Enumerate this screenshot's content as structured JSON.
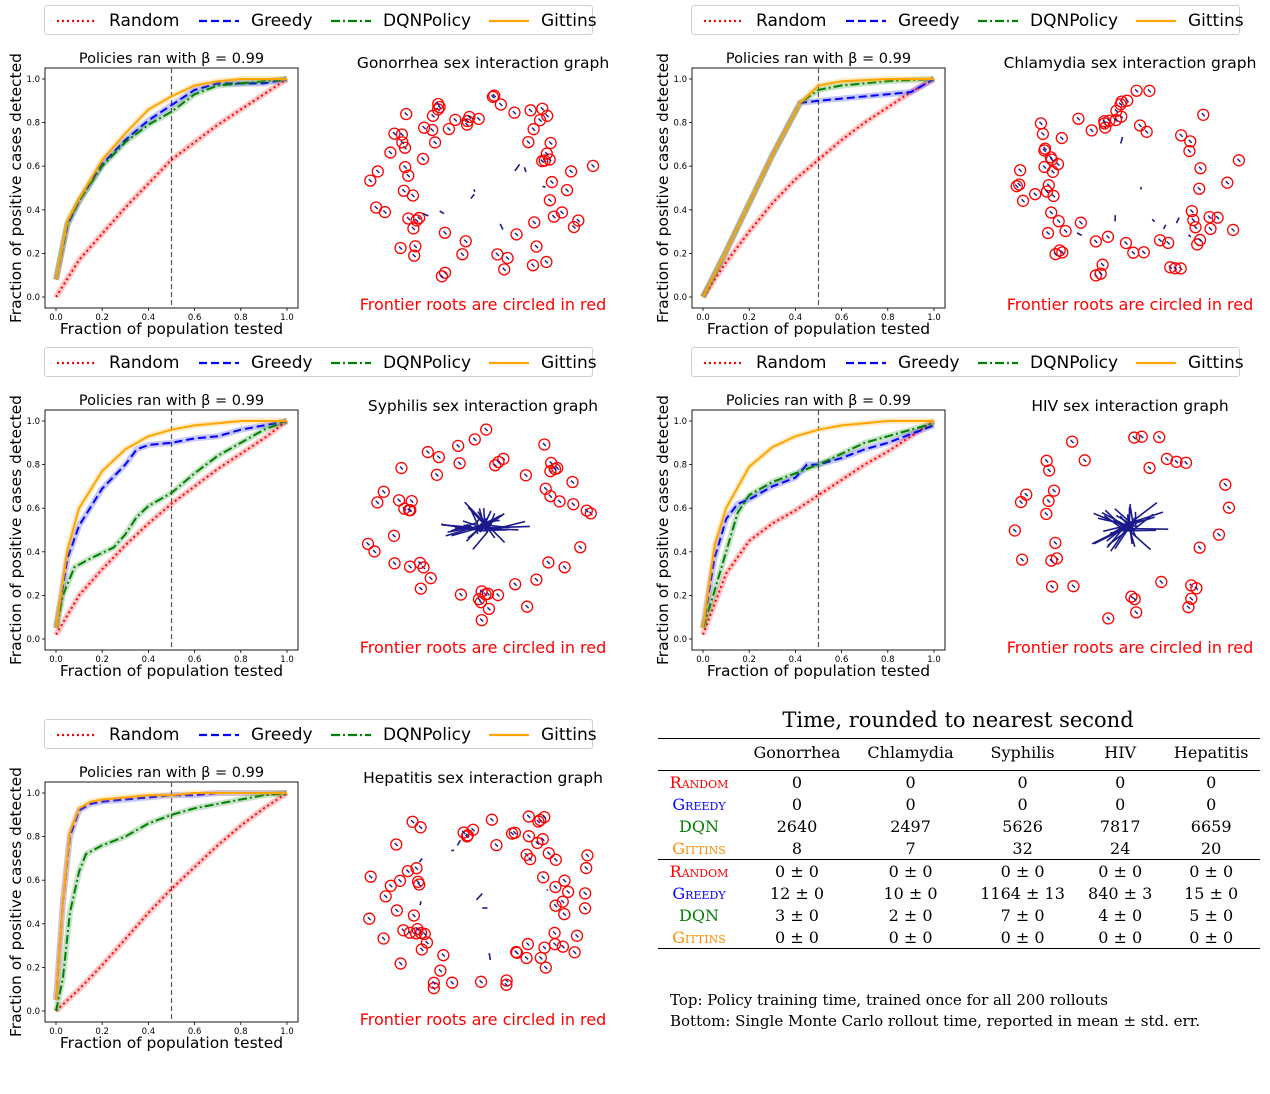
{
  "legend": {
    "entries": [
      {
        "name": "Random",
        "color": "#ff0000",
        "style": "dotted"
      },
      {
        "name": "Greedy",
        "color": "#0000ff",
        "style": "dashed"
      },
      {
        "name": "DQNPolicy",
        "color": "#008000",
        "style": "dashdot"
      },
      {
        "name": "Gittins",
        "color": "#ffa500",
        "style": "solid"
      }
    ]
  },
  "graph_caption": "Frontier roots are circled in red",
  "chart_data": [
    {
      "type": "line",
      "title": "Policies ran with β = 0.99",
      "graph_title": "Gonorrhea sex interaction graph",
      "xlabel": "Fraction of population tested",
      "ylabel": "Fraction of positive cases detected",
      "xlim": [
        0,
        1
      ],
      "ylim": [
        0,
        1
      ],
      "xticks": [
        "0.0",
        "0.2",
        "0.4",
        "0.6",
        "0.8",
        "1.0"
      ],
      "yticks": [
        "0.0",
        "0.2",
        "0.4",
        "0.6",
        "0.8",
        "1.0"
      ],
      "vline_x": 0.5,
      "series": [
        {
          "name": "Random",
          "x": [
            0,
            0.1,
            0.2,
            0.3,
            0.4,
            0.5,
            0.6,
            0.7,
            0.8,
            0.9,
            1.0
          ],
          "values": [
            0,
            0.17,
            0.29,
            0.41,
            0.52,
            0.63,
            0.71,
            0.79,
            0.86,
            0.93,
            1.0
          ]
        },
        {
          "name": "Greedy",
          "x": [
            0,
            0.05,
            0.1,
            0.2,
            0.3,
            0.4,
            0.5,
            0.6,
            0.7,
            0.8,
            0.9,
            1.0
          ],
          "values": [
            0.08,
            0.33,
            0.44,
            0.61,
            0.72,
            0.81,
            0.88,
            0.95,
            0.98,
            0.98,
            0.98,
            1.0
          ]
        },
        {
          "name": "DQNPolicy",
          "x": [
            0,
            0.05,
            0.1,
            0.2,
            0.3,
            0.4,
            0.5,
            0.6,
            0.7,
            0.8,
            0.9,
            1.0
          ],
          "values": [
            0.08,
            0.34,
            0.44,
            0.6,
            0.71,
            0.79,
            0.85,
            0.93,
            0.97,
            0.98,
            0.99,
            1.0
          ]
        },
        {
          "name": "Gittins",
          "x": [
            0,
            0.05,
            0.1,
            0.2,
            0.3,
            0.4,
            0.5,
            0.6,
            0.7,
            0.8,
            0.9,
            1.0
          ],
          "values": [
            0.08,
            0.35,
            0.45,
            0.63,
            0.75,
            0.86,
            0.92,
            0.97,
            0.99,
            1.0,
            1.0,
            1.0
          ]
        }
      ]
    },
    {
      "type": "line",
      "title": "Policies ran with β = 0.99",
      "graph_title": "Chlamydia sex interaction graph",
      "xlabel": "Fraction of population tested",
      "ylabel": "Fraction of positive cases detected",
      "xlim": [
        0,
        1
      ],
      "ylim": [
        0,
        1
      ],
      "xticks": [
        "0.0",
        "0.2",
        "0.4",
        "0.6",
        "0.8",
        "1.0"
      ],
      "yticks": [
        "0.0",
        "0.2",
        "0.4",
        "0.6",
        "0.8",
        "1.0"
      ],
      "vline_x": 0.5,
      "series": [
        {
          "name": "Random",
          "x": [
            0,
            0.1,
            0.2,
            0.3,
            0.4,
            0.5,
            0.6,
            0.7,
            0.8,
            0.9,
            1.0
          ],
          "values": [
            0,
            0.16,
            0.3,
            0.43,
            0.54,
            0.63,
            0.72,
            0.8,
            0.87,
            0.94,
            1.0
          ]
        },
        {
          "name": "Greedy",
          "x": [
            0,
            0.1,
            0.2,
            0.3,
            0.42,
            0.5,
            0.6,
            0.7,
            0.8,
            0.9,
            1.0
          ],
          "values": [
            0,
            0.21,
            0.43,
            0.65,
            0.89,
            0.9,
            0.91,
            0.92,
            0.93,
            0.94,
            1.0
          ]
        },
        {
          "name": "DQNPolicy",
          "x": [
            0,
            0.1,
            0.2,
            0.3,
            0.42,
            0.5,
            0.6,
            0.7,
            0.8,
            0.9,
            1.0
          ],
          "values": [
            0,
            0.21,
            0.43,
            0.65,
            0.89,
            0.95,
            0.97,
            0.98,
            0.99,
            0.995,
            1.0
          ]
        },
        {
          "name": "Gittins",
          "x": [
            0,
            0.1,
            0.2,
            0.3,
            0.42,
            0.5,
            0.6,
            0.7,
            0.8,
            0.9,
            1.0
          ],
          "values": [
            0,
            0.21,
            0.43,
            0.65,
            0.89,
            0.97,
            0.99,
            0.995,
            1.0,
            1.0,
            1.0
          ]
        }
      ]
    },
    {
      "type": "line",
      "title": "Policies ran with β = 0.99",
      "graph_title": "Syphilis sex interaction graph",
      "xlabel": "Fraction of population tested",
      "ylabel": "Fraction of positive cases detected",
      "xlim": [
        0,
        1
      ],
      "ylim": [
        0,
        1
      ],
      "xticks": [
        "0.0",
        "0.2",
        "0.4",
        "0.6",
        "0.8",
        "1.0"
      ],
      "yticks": [
        "0.0",
        "0.2",
        "0.4",
        "0.6",
        "0.8",
        "1.0"
      ],
      "vline_x": 0.5,
      "series": [
        {
          "name": "Random",
          "x": [
            0,
            0.1,
            0.2,
            0.3,
            0.4,
            0.5,
            0.6,
            0.7,
            0.8,
            0.9,
            1.0
          ],
          "values": [
            0.02,
            0.2,
            0.32,
            0.43,
            0.53,
            0.62,
            0.7,
            0.78,
            0.85,
            0.92,
            1.0
          ]
        },
        {
          "name": "Greedy",
          "x": [
            0,
            0.05,
            0.1,
            0.2,
            0.3,
            0.35,
            0.4,
            0.5,
            0.6,
            0.7,
            0.8,
            0.9,
            1.0
          ],
          "values": [
            0.05,
            0.37,
            0.52,
            0.69,
            0.8,
            0.87,
            0.89,
            0.9,
            0.92,
            0.93,
            0.96,
            0.98,
            1.0
          ]
        },
        {
          "name": "DQNPolicy",
          "x": [
            0,
            0.03,
            0.08,
            0.15,
            0.25,
            0.3,
            0.35,
            0.4,
            0.5,
            0.6,
            0.7,
            0.8,
            0.9,
            1.0
          ],
          "values": [
            0.05,
            0.2,
            0.33,
            0.37,
            0.42,
            0.48,
            0.56,
            0.61,
            0.67,
            0.76,
            0.84,
            0.9,
            0.96,
            1.0
          ]
        },
        {
          "name": "Gittins",
          "x": [
            0,
            0.05,
            0.1,
            0.2,
            0.3,
            0.4,
            0.5,
            0.6,
            0.7,
            0.8,
            0.9,
            1.0
          ],
          "values": [
            0.05,
            0.41,
            0.6,
            0.77,
            0.87,
            0.93,
            0.96,
            0.98,
            0.99,
            1.0,
            1.0,
            1.0
          ]
        }
      ]
    },
    {
      "type": "line",
      "title": "Policies ran with β = 0.99",
      "graph_title": "HIV sex interaction graph",
      "xlabel": "Fraction of population tested",
      "ylabel": "Fraction of positive cases detected",
      "xlim": [
        0,
        1
      ],
      "ylim": [
        0,
        1
      ],
      "xticks": [
        "0.0",
        "0.2",
        "0.4",
        "0.6",
        "0.8",
        "1.0"
      ],
      "yticks": [
        "0.0",
        "0.2",
        "0.4",
        "0.6",
        "0.8",
        "1.0"
      ],
      "vline_x": 0.5,
      "series": [
        {
          "name": "Random",
          "x": [
            0,
            0.05,
            0.1,
            0.2,
            0.3,
            0.4,
            0.5,
            0.6,
            0.7,
            0.8,
            0.9,
            1.0
          ],
          "values": [
            0.02,
            0.16,
            0.3,
            0.45,
            0.53,
            0.59,
            0.66,
            0.73,
            0.8,
            0.86,
            0.93,
            1.0
          ]
        },
        {
          "name": "Greedy",
          "x": [
            0,
            0.05,
            0.1,
            0.15,
            0.2,
            0.3,
            0.4,
            0.45,
            0.5,
            0.6,
            0.7,
            0.8,
            0.9,
            1.0
          ],
          "values": [
            0.05,
            0.37,
            0.55,
            0.62,
            0.64,
            0.7,
            0.74,
            0.8,
            0.8,
            0.83,
            0.87,
            0.9,
            0.94,
            0.98
          ]
        },
        {
          "name": "DQNPolicy",
          "x": [
            0,
            0.05,
            0.1,
            0.15,
            0.2,
            0.3,
            0.4,
            0.5,
            0.6,
            0.7,
            0.8,
            0.9,
            1.0
          ],
          "values": [
            0.05,
            0.22,
            0.4,
            0.58,
            0.66,
            0.72,
            0.76,
            0.8,
            0.85,
            0.9,
            0.93,
            0.96,
            0.99
          ]
        },
        {
          "name": "Gittins",
          "x": [
            0,
            0.05,
            0.1,
            0.2,
            0.3,
            0.4,
            0.5,
            0.6,
            0.7,
            0.8,
            0.9,
            1.0
          ],
          "values": [
            0.05,
            0.43,
            0.6,
            0.79,
            0.88,
            0.93,
            0.96,
            0.98,
            0.99,
            1.0,
            1.0,
            1.0
          ]
        }
      ]
    },
    {
      "type": "line",
      "title": "Policies ran with β = 0.99",
      "graph_title": "Hepatitis sex interaction graph",
      "xlabel": "Fraction of population tested",
      "ylabel": "Fraction of positive cases detected",
      "xlim": [
        0,
        1
      ],
      "ylim": [
        0,
        1
      ],
      "xticks": [
        "0.0",
        "0.2",
        "0.4",
        "0.6",
        "0.8",
        "1.0"
      ],
      "yticks": [
        "0.0",
        "0.2",
        "0.4",
        "0.6",
        "0.8",
        "1.0"
      ],
      "vline_x": 0.5,
      "series": [
        {
          "name": "Random",
          "x": [
            0,
            0.1,
            0.2,
            0.3,
            0.4,
            0.5,
            0.6,
            0.7,
            0.8,
            0.9,
            1.0
          ],
          "values": [
            0,
            0.1,
            0.21,
            0.33,
            0.45,
            0.56,
            0.66,
            0.76,
            0.85,
            0.93,
            1.0
          ]
        },
        {
          "name": "Greedy",
          "x": [
            0,
            0.03,
            0.06,
            0.1,
            0.15,
            0.2,
            0.3,
            0.4,
            0.5,
            0.6,
            0.7,
            0.8,
            0.9,
            1.0
          ],
          "values": [
            0.05,
            0.5,
            0.8,
            0.92,
            0.95,
            0.96,
            0.97,
            0.98,
            0.99,
            0.99,
            1.0,
            1.0,
            1.0,
            1.0
          ]
        },
        {
          "name": "DQNPolicy",
          "x": [
            0,
            0.03,
            0.06,
            0.1,
            0.13,
            0.2,
            0.3,
            0.4,
            0.5,
            0.6,
            0.7,
            0.8,
            0.9,
            1.0
          ],
          "values": [
            0,
            0.15,
            0.45,
            0.64,
            0.72,
            0.76,
            0.8,
            0.86,
            0.9,
            0.93,
            0.95,
            0.97,
            0.99,
            1.0
          ]
        },
        {
          "name": "Gittins",
          "x": [
            0,
            0.03,
            0.06,
            0.1,
            0.15,
            0.2,
            0.3,
            0.4,
            0.5,
            0.6,
            0.7,
            0.8,
            0.9,
            1.0
          ],
          "values": [
            0.05,
            0.5,
            0.82,
            0.93,
            0.96,
            0.97,
            0.98,
            0.99,
            0.99,
            1.0,
            1.0,
            1.0,
            1.0,
            1.0
          ]
        }
      ]
    }
  ],
  "table": {
    "title": "Time, rounded to nearest second",
    "columns": [
      "",
      "Gonorrhea",
      "Chlamydia",
      "Syphilis",
      "HIV",
      "Hepatitis"
    ],
    "top_rows": [
      {
        "name": "Random",
        "color": "#ff0000",
        "values": [
          "0",
          "0",
          "0",
          "0",
          "0"
        ]
      },
      {
        "name": "Greedy",
        "color": "#0000ff",
        "values": [
          "0",
          "0",
          "0",
          "0",
          "0"
        ]
      },
      {
        "name": "DQN",
        "color": "#008000",
        "values": [
          "2640",
          "2497",
          "5626",
          "7817",
          "6659"
        ]
      },
      {
        "name": "Gittins",
        "color": "#ff8c00",
        "values": [
          "8",
          "7",
          "32",
          "24",
          "20"
        ]
      }
    ],
    "bottom_rows": [
      {
        "name": "Random",
        "color": "#ff0000",
        "values": [
          "0 ± 0",
          "0 ± 0",
          "0 ± 0",
          "0 ± 0",
          "0 ± 0"
        ]
      },
      {
        "name": "Greedy",
        "color": "#0000ff",
        "values": [
          "12 ± 0",
          "10 ± 0",
          "1164 ± 13",
          "840 ± 3",
          "15 ± 0"
        ]
      },
      {
        "name": "DQN",
        "color": "#008000",
        "values": [
          "3 ± 0",
          "2 ± 0",
          "7 ± 0",
          "4 ± 0",
          "5 ± 0"
        ]
      },
      {
        "name": "Gittins",
        "color": "#ff8c00",
        "values": [
          "0 ± 0",
          "0 ± 0",
          "0 ± 0",
          "0 ± 0",
          "0 ± 0"
        ]
      }
    ],
    "note_top": "Top: Policy training time, trained once for all 200 rollouts",
    "note_bottom": "Bottom: Single Monte Carlo rollout time, reported in mean ± std. err."
  }
}
